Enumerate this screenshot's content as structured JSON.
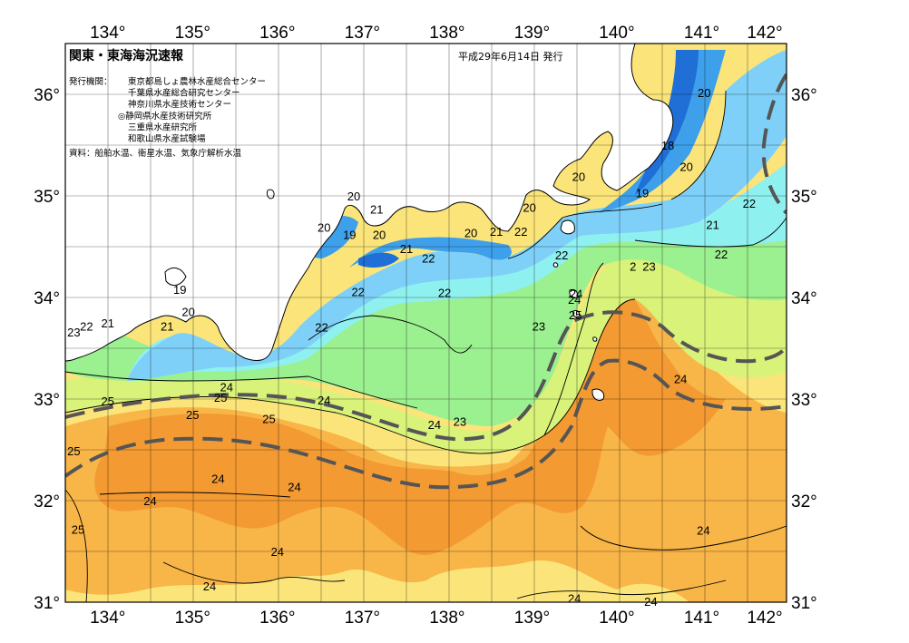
{
  "title": "関東・東海海況速報",
  "issue_date": "平成29年6月14日 発行",
  "issuers_label": "発行機関：",
  "issuers": [
    "東京都島しょ農林水産総合センター",
    "千葉県水産総合研究センター",
    "神奈川県水産技術センター",
    "◎静岡県水産技術研究所",
    "三重県水産研究所",
    "和歌山県水産試験場"
  ],
  "data_source": "資料：船舶水温、衛星水温、気象庁解析水温",
  "longitude_labels": [
    "134°",
    "135°",
    "136°",
    "137°",
    "138°",
    "139°",
    "140°",
    "141°",
    "142°"
  ],
  "latitude_labels": [
    "36°",
    "35°",
    "34°",
    "33°",
    "32°",
    "31°"
  ],
  "map": {
    "lon_range": [
      133.5,
      142.0
    ],
    "lat_range": [
      31.0,
      36.5
    ],
    "colors": {
      "land": "#ffffff",
      "temp_18": "#1f6fd6",
      "temp_19": "#3ea0ea",
      "temp_20": "#7ed0f8",
      "temp_21": "#8ff1ef",
      "temp_22": "#9bf08f",
      "temp_23": "#d8f27a",
      "temp_24": "#fbe57a",
      "temp_25": "#f8b548",
      "temp_26": "#f39a32",
      "kuroshio_axis": "#555555",
      "grid": "#000000"
    }
  },
  "isotherm_labels": [
    {
      "text": "20",
      "lon": 141.03,
      "lat": 36.02
    },
    {
      "text": "18",
      "lon": 140.6,
      "lat": 35.5
    },
    {
      "text": "20",
      "lon": 140.82,
      "lat": 35.29
    },
    {
      "text": "19",
      "lon": 140.3,
      "lat": 35.03
    },
    {
      "text": "20",
      "lon": 139.55,
      "lat": 35.19
    },
    {
      "text": "20",
      "lon": 138.97,
      "lat": 34.89
    },
    {
      "text": "20",
      "lon": 136.9,
      "lat": 35.0
    },
    {
      "text": "21",
      "lon": 137.17,
      "lat": 34.87
    },
    {
      "text": "20",
      "lon": 136.55,
      "lat": 34.69
    },
    {
      "text": "19",
      "lon": 136.85,
      "lat": 34.62
    },
    {
      "text": "20",
      "lon": 137.2,
      "lat": 34.62
    },
    {
      "text": "21",
      "lon": 137.52,
      "lat": 34.48
    },
    {
      "text": "20",
      "lon": 138.28,
      "lat": 34.64
    },
    {
      "text": "21",
      "lon": 138.58,
      "lat": 34.65
    },
    {
      "text": "22",
      "lon": 138.87,
      "lat": 34.65
    },
    {
      "text": "22",
      "lon": 137.78,
      "lat": 34.39
    },
    {
      "text": "22",
      "lon": 139.35,
      "lat": 34.42
    },
    {
      "text": "21",
      "lon": 141.13,
      "lat": 34.72
    },
    {
      "text": "22",
      "lon": 141.56,
      "lat": 34.93
    },
    {
      "text": "22",
      "lon": 141.23,
      "lat": 34.43
    },
    {
      "text": "2",
      "lon": 140.19,
      "lat": 34.31
    },
    {
      "text": "23",
      "lon": 140.38,
      "lat": 34.31
    },
    {
      "text": "19",
      "lon": 134.85,
      "lat": 34.08
    },
    {
      "text": "22",
      "lon": 136.95,
      "lat": 34.06
    },
    {
      "text": "22",
      "lon": 137.97,
      "lat": 34.05
    },
    {
      "text": "24",
      "lon": 139.52,
      "lat": 34.04
    },
    {
      "text": "20",
      "lon": 134.95,
      "lat": 33.86
    },
    {
      "text": "25",
      "lon": 139.51,
      "lat": 33.83
    },
    {
      "text": "23",
      "lon": 139.08,
      "lat": 33.72
    },
    {
      "text": "22",
      "lon": 136.52,
      "lat": 33.71
    },
    {
      "text": "21",
      "lon": 134.0,
      "lat": 33.75
    },
    {
      "text": "22",
      "lon": 133.75,
      "lat": 33.72
    },
    {
      "text": "23",
      "lon": 133.6,
      "lat": 33.66
    },
    {
      "text": "21",
      "lon": 134.7,
      "lat": 33.72
    },
    {
      "text": "24",
      "lon": 140.75,
      "lat": 33.2
    },
    {
      "text": "24",
      "lon": 135.4,
      "lat": 33.12
    },
    {
      "text": "25",
      "lon": 135.33,
      "lat": 33.02
    },
    {
      "text": "24",
      "lon": 136.55,
      "lat": 32.99
    },
    {
      "text": "25",
      "lon": 134.0,
      "lat": 32.98
    },
    {
      "text": "25",
      "lon": 135.0,
      "lat": 32.85
    },
    {
      "text": "25",
      "lon": 135.9,
      "lat": 32.81
    },
    {
      "text": "24",
      "lon": 137.85,
      "lat": 32.75
    },
    {
      "text": "23",
      "lon": 138.15,
      "lat": 32.78
    },
    {
      "text": "25",
      "lon": 133.6,
      "lat": 32.49
    },
    {
      "text": "24",
      "lon": 135.3,
      "lat": 32.22
    },
    {
      "text": "24",
      "lon": 136.2,
      "lat": 32.14
    },
    {
      "text": "24",
      "lon": 134.5,
      "lat": 32.0
    },
    {
      "text": "25",
      "lon": 133.65,
      "lat": 31.72
    },
    {
      "text": "24",
      "lon": 141.02,
      "lat": 31.71
    },
    {
      "text": "24",
      "lon": 136.0,
      "lat": 31.5
    },
    {
      "text": "24",
      "lon": 135.2,
      "lat": 31.16
    },
    {
      "text": "24",
      "lon": 139.5,
      "lat": 31.04
    },
    {
      "text": "24",
      "lon": 140.4,
      "lat": 31.01
    },
    {
      "text": "24",
      "lon": 139.5,
      "lat": 33.98
    }
  ]
}
